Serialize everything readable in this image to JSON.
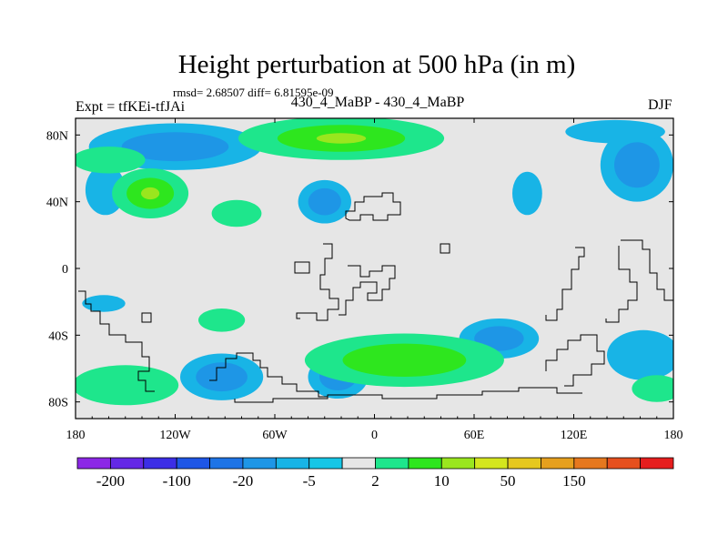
{
  "header": {
    "title": "Height perturbation at 500 hPa (in m)",
    "stats": "rmsd= 2.68507 diff= 6.81595e-09",
    "left_label": "Expt = tfKEi-tfJAi",
    "center_label": "430_4_MaBP - 430_4_MaBP",
    "right_label": "DJF"
  },
  "chart_data": {
    "type": "heatmap",
    "title": "Height perturbation at 500 hPa (in m)",
    "x_ticks": [
      "180",
      "120W",
      "60W",
      "0",
      "60E",
      "120E",
      "180"
    ],
    "x_tick_values": [
      -180,
      -120,
      -60,
      0,
      60,
      120,
      180
    ],
    "y_ticks": [
      "80N",
      "40N",
      "0",
      "40S",
      "80S"
    ],
    "y_tick_values": [
      80,
      40,
      0,
      -40,
      -80
    ],
    "xlim": [
      -180,
      180
    ],
    "ylim": [
      -90,
      90
    ],
    "colorbar": {
      "labels": [
        "-200",
        "-100",
        "-20",
        "-5",
        "2",
        "10",
        "50",
        "150"
      ],
      "colors": [
        "#8c28e6",
        "#6428e6",
        "#3c2ee6",
        "#1e56e6",
        "#1e74e6",
        "#1e96e6",
        "#18b4e6",
        "#16c6e6",
        "#e6e6e6",
        "#1ee68c",
        "#2ee61e",
        "#9ae61e",
        "#d4e61e",
        "#e6c81e",
        "#e6a01e",
        "#e6781e",
        "#e6501e",
        "#e61e1e"
      ]
    },
    "regions": [
      {
        "lon": -120,
        "lat": 73,
        "rx": 52,
        "ry": 14,
        "levels": [
          -5,
          -20
        ]
      },
      {
        "lon": 158,
        "lat": 62,
        "rx": 22,
        "ry": 22,
        "levels": [
          -5,
          -20
        ]
      },
      {
        "lon": -162,
        "lat": 47,
        "rx": 12,
        "ry": 15,
        "levels": [
          -5
        ]
      },
      {
        "lon": -30,
        "lat": 40,
        "rx": 16,
        "ry": 13,
        "levels": [
          -5,
          -20
        ]
      },
      {
        "lon": 92,
        "lat": 45,
        "rx": 9,
        "ry": 13,
        "levels": [
          -5
        ]
      },
      {
        "lon": 145,
        "lat": 82,
        "rx": 30,
        "ry": 7,
        "levels": [
          -5
        ]
      },
      {
        "lon": -163,
        "lat": -21,
        "rx": 13,
        "ry": 5,
        "levels": [
          -5
        ]
      },
      {
        "lon": -92,
        "lat": -65,
        "rx": 25,
        "ry": 14,
        "levels": [
          -5,
          -20
        ]
      },
      {
        "lon": -22,
        "lat": -65,
        "rx": 18,
        "ry": 13,
        "levels": [
          -5,
          -20
        ]
      },
      {
        "lon": 75,
        "lat": -42,
        "rx": 24,
        "ry": 12,
        "levels": [
          -5,
          -20
        ]
      },
      {
        "lon": 162,
        "lat": -52,
        "rx": 22,
        "ry": 15,
        "levels": [
          -5
        ]
      },
      {
        "lon": -20,
        "lat": 78,
        "rx": 62,
        "ry": 13,
        "levels": [
          2,
          10,
          50
        ]
      },
      {
        "lon": -135,
        "lat": 45,
        "rx": 23,
        "ry": 15,
        "levels": [
          2,
          10,
          50
        ]
      },
      {
        "lon": -83,
        "lat": 33,
        "rx": 15,
        "ry": 8,
        "levels": [
          2
        ]
      },
      {
        "lon": -92,
        "lat": -31,
        "rx": 14,
        "ry": 7,
        "levels": [
          2
        ]
      },
      {
        "lon": 18,
        "lat": -55,
        "rx": 60,
        "ry": 16,
        "levels": [
          2,
          10
        ]
      },
      {
        "lon": -150,
        "lat": -70,
        "rx": 32,
        "ry": 12,
        "levels": [
          2
        ]
      },
      {
        "lon": -160,
        "lat": 65,
        "rx": 22,
        "ry": 8,
        "levels": [
          2
        ]
      },
      {
        "lon": 170,
        "lat": -72,
        "rx": 15,
        "ry": 8,
        "levels": [
          2
        ]
      }
    ]
  }
}
